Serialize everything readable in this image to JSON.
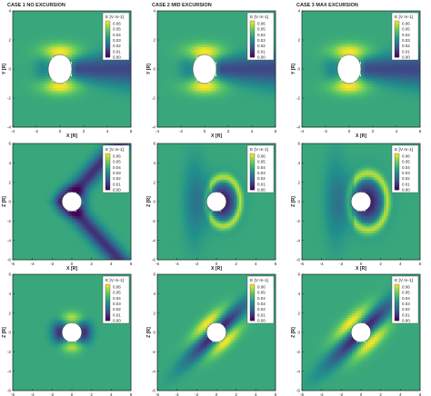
{
  "case_labels": [
    "CASE 1 NO EXCURSION",
    "CASE 2 MID EXCURSION",
    "CASE 3 MAX EXCURSION"
  ],
  "colors": {
    "viridis": [
      "#440154",
      "#3b528b",
      "#21918c",
      "#5ec962",
      "#fde725"
    ],
    "obstacle": "#ffffff"
  },
  "chart_data": [
    {
      "type": "heatmap",
      "row": 0,
      "col": 0,
      "case": "CASE 1 NO EXCURSION",
      "xlabel": "X [R]",
      "ylabel": "Y [R]",
      "xlim": [
        -4,
        6
      ],
      "ylim": [
        -4,
        4
      ],
      "xticks": [
        -4,
        -2,
        0,
        2,
        4,
        6
      ],
      "yticks": [
        -4,
        -2,
        0,
        2,
        4
      ],
      "obstacle_radius": 1,
      "pattern": "xy",
      "colorbar": {
        "label": "E [V m-1]",
        "ticks": [
          0.06,
          0.05,
          0.04,
          0.03,
          0.02,
          0.01,
          0.0
        ],
        "range": [
          0,
          0.065
        ]
      }
    },
    {
      "type": "heatmap",
      "row": 0,
      "col": 1,
      "case": "CASE 2 MID EXCURSION",
      "xlabel": "X [R]",
      "ylabel": "Y [R]",
      "xlim": [
        -4,
        6
      ],
      "ylim": [
        -4,
        4
      ],
      "xticks": [
        -4,
        -2,
        0,
        2,
        4,
        6
      ],
      "yticks": [
        -4,
        -2,
        0,
        2,
        4
      ],
      "obstacle_radius": 1,
      "pattern": "xy",
      "colorbar": {
        "label": "E [V m-1]",
        "ticks": [
          0.06,
          0.05,
          0.04,
          0.03,
          0.02,
          0.01,
          0.0
        ],
        "range": [
          0,
          0.065
        ]
      }
    },
    {
      "type": "heatmap",
      "row": 0,
      "col": 2,
      "case": "CASE 3 MAX EXCURSION",
      "xlabel": "X [R]",
      "ylabel": "Y [R]",
      "xlim": [
        -4,
        6
      ],
      "ylim": [
        -4,
        4
      ],
      "xticks": [
        -4,
        -2,
        0,
        2,
        4,
        6
      ],
      "yticks": [
        -4,
        -2,
        0,
        2,
        4
      ],
      "obstacle_radius": 1,
      "pattern": "xy",
      "colorbar": {
        "label": "E [V m-1]",
        "ticks": [
          0.06,
          0.05,
          0.04,
          0.03,
          0.02,
          0.01,
          0.0
        ],
        "range": [
          0,
          0.065
        ]
      }
    },
    {
      "type": "heatmap",
      "row": 1,
      "col": 0,
      "case": "CASE 1 NO EXCURSION",
      "xlabel": "X [R]",
      "ylabel": "Z [R]",
      "xlim": [
        -6,
        6
      ],
      "ylim": [
        -6,
        6
      ],
      "xticks": [
        -6,
        -4,
        -2,
        0,
        2,
        4,
        6
      ],
      "yticks": [
        -6,
        -4,
        -2,
        0,
        2,
        4,
        6
      ],
      "obstacle_radius": 1,
      "pattern": "xz1",
      "colorbar": {
        "label": "E [V m-1]",
        "ticks": [
          0.06,
          0.05,
          0.04,
          0.03,
          0.02,
          0.01,
          0.0
        ],
        "range": [
          0,
          0.065
        ]
      }
    },
    {
      "type": "heatmap",
      "row": 1,
      "col": 1,
      "case": "CASE 2 MID EXCURSION",
      "xlabel": "X [R]",
      "ylabel": "Z [R]",
      "xlim": [
        -6,
        6
      ],
      "ylim": [
        -6,
        6
      ],
      "xticks": [
        -6,
        -4,
        -2,
        0,
        2,
        4,
        6
      ],
      "yticks": [
        -6,
        -4,
        -2,
        0,
        2,
        4,
        6
      ],
      "obstacle_radius": 1,
      "pattern": "xz2",
      "colorbar": {
        "label": "E [V m-1]",
        "ticks": [
          0.06,
          0.05,
          0.04,
          0.03,
          0.02,
          0.01,
          0.0
        ],
        "range": [
          0,
          0.065
        ]
      }
    },
    {
      "type": "heatmap",
      "row": 1,
      "col": 2,
      "case": "CASE 3 MAX EXCURSION",
      "xlabel": "X [R]",
      "ylabel": "Z [R]",
      "xlim": [
        -6,
        6
      ],
      "ylim": [
        -6,
        6
      ],
      "xticks": [
        -6,
        -4,
        -2,
        0,
        2,
        4,
        6
      ],
      "yticks": [
        -6,
        -4,
        -2,
        0,
        2,
        4,
        6
      ],
      "obstacle_radius": 1,
      "pattern": "xz3",
      "colorbar": {
        "label": "E [V m-1]",
        "ticks": [
          0.06,
          0.05,
          0.04,
          0.03,
          0.02,
          0.01,
          0.0
        ],
        "range": [
          0,
          0.065
        ]
      }
    },
    {
      "type": "heatmap",
      "row": 2,
      "col": 0,
      "case": "CASE 1 NO EXCURSION",
      "xlabel": "Y [R]",
      "ylabel": "Z [R]",
      "xlim": [
        -6,
        6
      ],
      "ylim": [
        -6,
        6
      ],
      "xticks": [
        -6,
        -4,
        -2,
        0,
        2,
        4,
        6
      ],
      "yticks": [
        -6,
        -4,
        -2,
        0,
        2,
        4,
        6
      ],
      "obstacle_radius": 1,
      "pattern": "yz1",
      "colorbar": {
        "label": "E [V m-1]",
        "ticks": [
          0.06,
          0.05,
          0.04,
          0.03,
          0.02,
          0.01,
          0.0
        ],
        "range": [
          0,
          0.065
        ]
      }
    },
    {
      "type": "heatmap",
      "row": 2,
      "col": 1,
      "case": "CASE 2 MID EXCURSION",
      "xlabel": "Y [R]",
      "ylabel": "Z [R]",
      "xlim": [
        -6,
        6
      ],
      "ylim": [
        -6,
        6
      ],
      "xticks": [
        -6,
        -4,
        -2,
        0,
        2,
        4,
        6
      ],
      "yticks": [
        -6,
        -4,
        -2,
        0,
        2,
        4,
        6
      ],
      "obstacle_radius": 1,
      "pattern": "yz2",
      "colorbar": {
        "label": "E [V m-1]",
        "ticks": [
          0.06,
          0.05,
          0.04,
          0.03,
          0.02,
          0.01,
          0.0
        ],
        "range": [
          0,
          0.065
        ]
      }
    },
    {
      "type": "heatmap",
      "row": 2,
      "col": 2,
      "case": "CASE 3 MAX EXCURSION",
      "xlabel": "Y [R]",
      "ylabel": "Z [R]",
      "xlim": [
        -6,
        6
      ],
      "ylim": [
        -6,
        6
      ],
      "xticks": [
        -6,
        -4,
        -2,
        0,
        2,
        4,
        6
      ],
      "yticks": [
        -6,
        -4,
        -2,
        0,
        2,
        4,
        6
      ],
      "obstacle_radius": 1,
      "pattern": "yz3",
      "colorbar": {
        "label": "E [V m-1]",
        "ticks": [
          0.06,
          0.05,
          0.04,
          0.03,
          0.02,
          0.01,
          0.0
        ],
        "range": [
          0,
          0.065
        ]
      }
    }
  ]
}
